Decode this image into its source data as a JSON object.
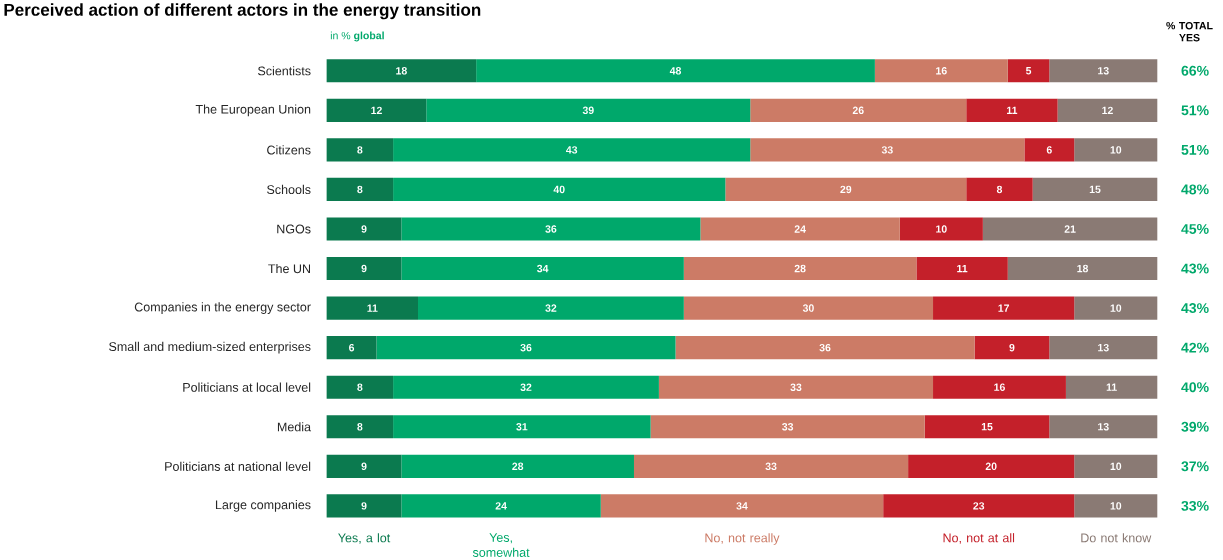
{
  "chart_data": {
    "type": "bar",
    "orientation": "horizontal",
    "stacked": true,
    "data_labels": true,
    "legend": "bottom",
    "tick_labels": "y",
    "title": "Perceived action of different actors in the energy transition",
    "subtitle": "in % **global**",
    "categories": [
      "Scientists",
      "The European Union",
      "Citizens",
      "Schools",
      "NGOs",
      "The UN",
      "Companies in the energy sector",
      "Small and medium-sized enterprises",
      "Politicians at local level",
      "Media",
      "Politicians at national level",
      "Large companies"
    ],
    "series": [
      {
        "name": "Yes, a lot",
        "color": "#0b7a4f",
        "values": [
          18,
          12,
          8,
          8,
          9,
          9,
          11,
          6,
          8,
          8,
          9,
          9
        ]
      },
      {
        "name": "Yes, somewhat",
        "color": "#00a86b",
        "values": [
          48,
          39,
          43,
          40,
          36,
          34,
          32,
          36,
          32,
          31,
          28,
          24
        ]
      },
      {
        "name": "No, not really",
        "color": "#cc7b66",
        "values": [
          16,
          26,
          33,
          29,
          24,
          28,
          30,
          36,
          33,
          33,
          33,
          34
        ]
      },
      {
        "name": "No, not at all",
        "color": "#c4202a",
        "values": [
          5,
          11,
          6,
          8,
          10,
          11,
          17,
          9,
          16,
          15,
          20,
          23
        ]
      },
      {
        "name": "Do not know",
        "color": "#8a7a74",
        "values": [
          13,
          12,
          10,
          15,
          21,
          18,
          10,
          13,
          11,
          13,
          10,
          10
        ]
      }
    ],
    "annotations": [
      "% TOTAL YES",
      "66%",
      "51%",
      "51%",
      "48%",
      "45%",
      "43%",
      "43%",
      "42%",
      "40%",
      "39%",
      "37%",
      "33%"
    ]
  }
}
